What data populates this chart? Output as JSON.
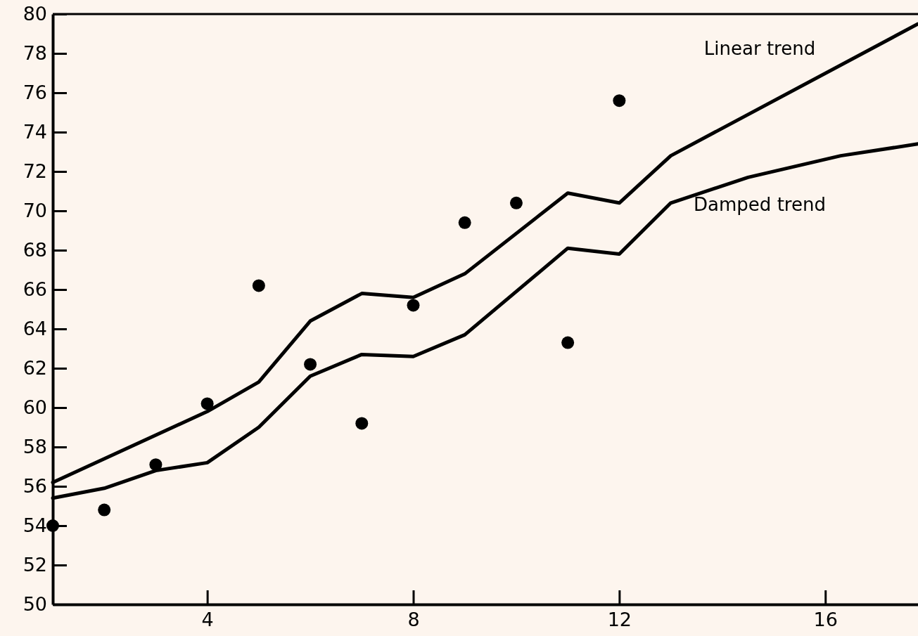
{
  "chart_data": {
    "type": "scatter",
    "xlim": [
      1,
      17.8
    ],
    "xticks": [
      4,
      8,
      12,
      16
    ],
    "ylim": [
      50,
      80
    ],
    "yticks": [
      50,
      52,
      54,
      56,
      58,
      60,
      62,
      64,
      66,
      68,
      70,
      72,
      74,
      76,
      78,
      80
    ],
    "grid": false,
    "legend": false,
    "marker": "circle",
    "series": [
      {
        "type": "scatter",
        "color": "#000000",
        "x": [
          1,
          2,
          3,
          4,
          5,
          6,
          7,
          8,
          9,
          10,
          11,
          12
        ],
        "values": [
          54.0,
          54.8,
          57.1,
          60.2,
          66.2,
          62.2,
          59.2,
          65.2,
          69.4,
          70.4,
          63.3,
          75.6
        ]
      },
      {
        "type": "line",
        "name": "Linear trend",
        "color": "#000000",
        "marker": "none",
        "x": [
          1,
          4,
          5,
          6,
          7,
          8,
          9,
          11,
          12,
          13,
          17.8
        ],
        "values": [
          56.2,
          59.8,
          61.3,
          64.4,
          65.8,
          65.6,
          66.8,
          70.9,
          70.4,
          72.8,
          79.5
        ]
      },
      {
        "type": "line",
        "name": "Damped trend",
        "color": "#000000",
        "marker": "none",
        "x": [
          1,
          2,
          3,
          4,
          5,
          6,
          7,
          8,
          9,
          11,
          12,
          13,
          14.5,
          16.3,
          17.8
        ],
        "values": [
          55.4,
          55.9,
          56.8,
          57.2,
          59.0,
          61.6,
          62.7,
          62.6,
          63.7,
          68.1,
          67.8,
          70.4,
          71.7,
          72.8,
          73.4
        ]
      }
    ]
  }
}
